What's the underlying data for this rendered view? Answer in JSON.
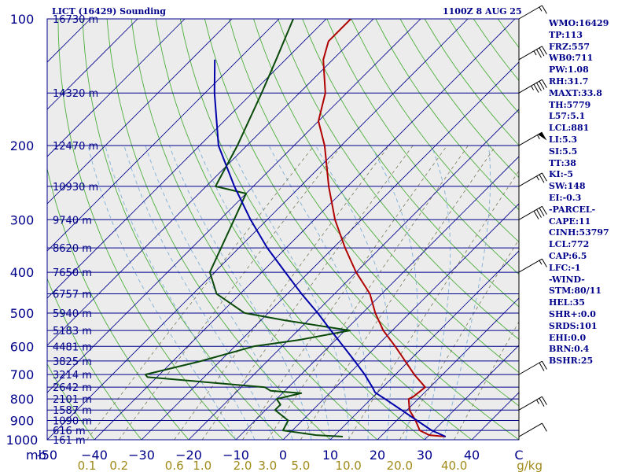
{
  "header": {
    "station": "LICT (16429) Sounding",
    "time": "1100Z  8 AUG 25"
  },
  "indices": [
    "WMO:16429",
    "TP:113",
    "FRZ:557",
    "WB0:711",
    "PW:1.08",
    "RH:31.7",
    "MAXT:33.8",
    "TH:5779",
    "L57:5.1",
    "LCL:881",
    "LI:5.3",
    "SI:5.5",
    "TT:38",
    "KI:-5",
    "SW:148",
    "EI:-0.3",
    "-PARCEL-",
    "CAPE:11",
    "CINH:53797",
    "LCL:772",
    "CAP:6.5",
    "LFC:-1",
    "-WIND-",
    "STM:80/11",
    "HEL:35",
    "SHR+:0.0",
    "SRDS:101",
    "EHI:0.0",
    "BRN:0.4",
    "BSHR:25"
  ],
  "chart_data": {
    "type": "line",
    "title": "LICT (16429) Sounding",
    "subtitle": "1100Z  8 AUG 25",
    "xlabel": "",
    "ylabel": "mb",
    "xlim": [
      -50,
      50
    ],
    "ylim": [
      1000,
      100
    ],
    "y_scale": "log",
    "skew": "temperature isotherms skewed 45°",
    "pressure_ticks": [
      1000,
      900,
      800,
      700,
      600,
      500,
      400,
      300,
      200,
      100
    ],
    "temperature_ticks": [
      -50,
      -40,
      -30,
      -20,
      -10,
      0,
      10,
      20,
      30,
      40,
      50
    ],
    "temperature_tick_labels": [
      "-50",
      "−40",
      "−30",
      "−20",
      "−10",
      "0",
      "10",
      "20",
      "30",
      "40",
      "C"
    ],
    "unit_label": "mb",
    "mixing_ratio_labels": [
      "0.1",
      "0.2",
      "0.6",
      "1.0",
      "2.0",
      "3.0",
      "5.0",
      "10.0",
      "20.0",
      "40.0"
    ],
    "mixing_ratio_unit": "g/kg",
    "mixing_ratios": [
      0.1,
      0.2,
      0.6,
      1.0,
      2.0,
      3.0,
      5.0,
      10.0,
      20.0,
      40.0
    ],
    "heights": [
      {
        "p": 100,
        "label": "16730 m"
      },
      {
        "p": 150,
        "label": "14320 m"
      },
      {
        "p": 200,
        "label": "12470 m"
      },
      {
        "p": 250,
        "label": "10930 m"
      },
      {
        "p": 300,
        "label": "9740 m"
      },
      {
        "p": 350,
        "label": "8620 m"
      },
      {
        "p": 400,
        "label": "7650 m"
      },
      {
        "p": 450,
        "label": "6757 m"
      },
      {
        "p": 500,
        "label": "5940 m"
      },
      {
        "p": 550,
        "label": "5183 m"
      },
      {
        "p": 600,
        "label": "4481 m"
      },
      {
        "p": 650,
        "label": "3825 m"
      },
      {
        "p": 700,
        "label": "3214 m"
      },
      {
        "p": 750,
        "label": "2642 m"
      },
      {
        "p": 800,
        "label": "2101 m"
      },
      {
        "p": 850,
        "label": "1587 m"
      },
      {
        "p": 900,
        "label": "1090 m"
      },
      {
        "p": 950,
        "label": "616 m"
      },
      {
        "p": 1000,
        "label": "161 m"
      }
    ],
    "series": [
      {
        "name": "temperature",
        "color": "#b00000",
        "points": [
          [
            983,
            33.8
          ],
          [
            975,
            30.0
          ],
          [
            950,
            27.0
          ],
          [
            900,
            24.0
          ],
          [
            850,
            20.5
          ],
          [
            800,
            18.0
          ],
          [
            790,
            18.5
          ],
          [
            750,
            19.0
          ],
          [
            700,
            14.0
          ],
          [
            650,
            9.2
          ],
          [
            600,
            4.0
          ],
          [
            550,
            -1.9
          ],
          [
            500,
            -7.3
          ],
          [
            450,
            -12.5
          ],
          [
            400,
            -20.0
          ],
          [
            350,
            -27.5
          ],
          [
            300,
            -35.6
          ],
          [
            250,
            -44.0
          ],
          [
            200,
            -53.5
          ],
          [
            175,
            -60.0
          ],
          [
            150,
            -64.5
          ],
          [
            125,
            -72.0
          ],
          [
            113,
            -74.8
          ],
          [
            100,
            -74.8
          ]
        ]
      },
      {
        "name": "dewpoint",
        "color": "#0a4a0a",
        "points": [
          [
            983,
            12.0
          ],
          [
            975,
            6.0
          ],
          [
            950,
            -2.0
          ],
          [
            900,
            -3.0
          ],
          [
            850,
            -8.0
          ],
          [
            825,
            -8.0
          ],
          [
            800,
            -10.0
          ],
          [
            775,
            -6.0
          ],
          [
            765,
            -13.0
          ],
          [
            750,
            -15.0
          ],
          [
            710,
            -42.0
          ],
          [
            700,
            -43.0
          ],
          [
            650,
            -34.0
          ],
          [
            600,
            -26.0
          ],
          [
            580,
            -18.0
          ],
          [
            550,
            -9.0
          ],
          [
            520,
            -25.0
          ],
          [
            500,
            -35.0
          ],
          [
            450,
            -45.0
          ],
          [
            400,
            -51.0
          ],
          [
            300,
            -57.0
          ],
          [
            260,
            -60.0
          ],
          [
            250,
            -68.0
          ],
          [
            200,
            -72.0
          ],
          [
            150,
            -78.0
          ],
          [
            125,
            -82.0
          ],
          [
            100,
            -87.0
          ]
        ]
      },
      {
        "name": "parcel",
        "color": "#0000aa",
        "points": [
          [
            983,
            33.8
          ],
          [
            950,
            29.5
          ],
          [
            900,
            24.3
          ],
          [
            850,
            18.8
          ],
          [
            800,
            13.0
          ],
          [
            772,
            9.5
          ],
          [
            750,
            7.8
          ],
          [
            700,
            3.5
          ],
          [
            650,
            -1.5
          ],
          [
            600,
            -7.0
          ],
          [
            550,
            -13.0
          ],
          [
            500,
            -19.5
          ],
          [
            450,
            -27.0
          ],
          [
            400,
            -35.0
          ],
          [
            350,
            -44.0
          ],
          [
            300,
            -53.5
          ],
          [
            250,
            -64.0
          ],
          [
            200,
            -76.0
          ],
          [
            150,
            -88.0
          ],
          [
            125,
            -95.0
          ]
        ]
      }
    ],
    "wind_barbs": [
      {
        "p": 983,
        "speed_kt": 10
      },
      {
        "p": 850,
        "speed_kt": 25
      },
      {
        "p": 700,
        "speed_kt": 20
      },
      {
        "p": 400,
        "speed_kt": 15
      },
      {
        "p": 300,
        "speed_kt": 40
      },
      {
        "p": 250,
        "speed_kt": 25
      },
      {
        "p": 200,
        "speed_kt": 55
      },
      {
        "p": 150,
        "speed_kt": 45
      },
      {
        "p": 125,
        "speed_kt": 35
      },
      {
        "p": 100,
        "speed_kt": 15
      }
    ],
    "colors": {
      "isobar": "#00008b",
      "isotherm": "#00008b",
      "dry_adiabat": "#4daf3c",
      "moist_adiabat": "#7fb0d8",
      "mixing_ratio": "#7a7a5a",
      "label": "#00008b",
      "mixing_label": "#a08a1a",
      "barb": "#000000",
      "plot_bg": "#ececec"
    }
  }
}
